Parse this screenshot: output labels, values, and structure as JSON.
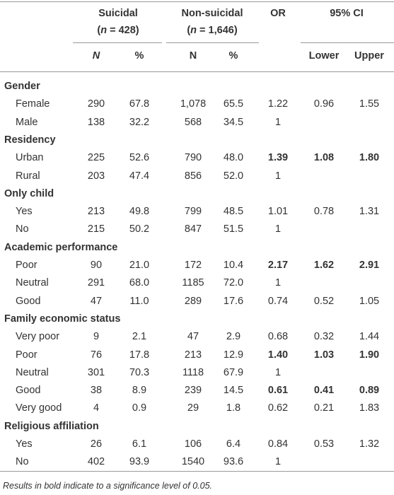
{
  "header": {
    "suicidal": {
      "name": "Suicidal",
      "n_open": "(",
      "n_var": "n",
      "n_rest": " = 428)"
    },
    "non_suicidal": {
      "name": "Non-suicidal",
      "n_open": "(",
      "n_var": "n",
      "n_rest": " = 1,646)"
    },
    "or": "OR",
    "ci": "95% CI",
    "subheaders": [
      "N",
      "%",
      "N",
      "%",
      "Lower",
      "Upper"
    ]
  },
  "sections": [
    {
      "title": "Gender",
      "rows": [
        {
          "label": "Female",
          "cells": [
            "290",
            "67.8",
            "1,078",
            "65.5",
            "1.22",
            "0.96",
            "1.55"
          ]
        },
        {
          "label": "Male",
          "cells": [
            "138",
            "32.2",
            "568",
            "34.5",
            "1"
          ]
        }
      ]
    },
    {
      "title": "Residency",
      "rows": [
        {
          "label": "Urban",
          "cells": [
            "225",
            "52.6",
            "790",
            "48.0",
            "1.39",
            "1.08",
            "1.80"
          ],
          "significant": true
        },
        {
          "label": "Rural",
          "cells": [
            "203",
            "47.4",
            "856",
            "52.0",
            "1"
          ]
        }
      ]
    },
    {
      "title": "Only child",
      "rows": [
        {
          "label": "Yes",
          "cells": [
            "213",
            "49.8",
            "799",
            "48.5",
            "1.01",
            "0.78",
            "1.31"
          ]
        },
        {
          "label": "No",
          "cells": [
            "215",
            "50.2",
            "847",
            "51.5",
            "1"
          ]
        }
      ]
    },
    {
      "title": "Academic performance",
      "rows": [
        {
          "label": "Poor",
          "cells": [
            "90",
            "21.0",
            "172",
            "10.4",
            "2.17",
            "1.62",
            "2.91"
          ],
          "significant": true
        },
        {
          "label": "Neutral",
          "cells": [
            "291",
            "68.0",
            "1185",
            "72.0",
            "1"
          ]
        },
        {
          "label": "Good",
          "cells": [
            "47",
            "11.0",
            "289",
            "17.6",
            "0.74",
            "0.52",
            "1.05"
          ]
        }
      ]
    },
    {
      "title": "Family economic status",
      "rows": [
        {
          "label": "Very poor",
          "cells": [
            "9",
            "2.1",
            "47",
            "2.9",
            "0.68",
            "0.32",
            "1.44"
          ]
        },
        {
          "label": "Poor",
          "cells": [
            "76",
            "17.8",
            "213",
            "12.9",
            "1.40",
            "1.03",
            "1.90"
          ],
          "significant": true
        },
        {
          "label": "Neutral",
          "cells": [
            "301",
            "70.3",
            "1118",
            "67.9",
            "1"
          ]
        },
        {
          "label": "Good",
          "cells": [
            "38",
            "8.9",
            "239",
            "14.5",
            "0.61",
            "0.41",
            "0.89"
          ],
          "significant": true
        },
        {
          "label": "Very good",
          "cells": [
            "4",
            "0.9",
            "29",
            "1.8",
            "0.62",
            "0.21",
            "1.83"
          ]
        }
      ]
    },
    {
      "title": "Religious affiliation",
      "rows": [
        {
          "label": "Yes",
          "cells": [
            "26",
            "6.1",
            "106",
            "6.4",
            "0.84",
            "0.53",
            "1.32"
          ]
        },
        {
          "label": "No",
          "cells": [
            "402",
            "93.9",
            "1540",
            "93.6",
            "1"
          ]
        }
      ]
    }
  ],
  "footnote": "Results in bold indicate to a significance level of 0.05."
}
